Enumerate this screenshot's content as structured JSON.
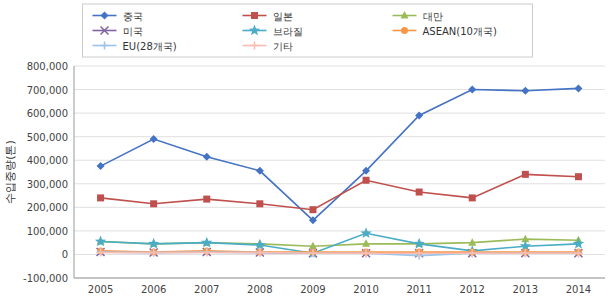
{
  "chart_data": {
    "type": "line",
    "y_label": "수입중량(톤)",
    "categories": [
      "2005",
      "2006",
      "2007",
      "2008",
      "2009",
      "2010",
      "2011",
      "2012",
      "2013",
      "2014"
    ],
    "series": [
      {
        "name": "중국",
        "color": "#4472C4",
        "marker": "diamond",
        "values": [
          375000,
          490000,
          415000,
          355000,
          145000,
          355000,
          590000,
          700000,
          695000,
          705000
        ]
      },
      {
        "name": "일본",
        "color": "#C0504D",
        "marker": "square",
        "values": [
          240000,
          215000,
          235000,
          215000,
          190000,
          315000,
          265000,
          240000,
          340000,
          330000
        ]
      },
      {
        "name": "대만",
        "color": "#9BBB59",
        "marker": "triangle",
        "values": [
          55000,
          45000,
          50000,
          45000,
          35000,
          45000,
          45000,
          50000,
          65000,
          60000
        ]
      },
      {
        "name": "미국",
        "color": "#8064A2",
        "marker": "x",
        "values": [
          10000,
          8000,
          10000,
          8000,
          5000,
          5000,
          5000,
          5000,
          5000,
          5000
        ]
      },
      {
        "name": "브라질",
        "color": "#4BACC6",
        "marker": "star",
        "values": [
          55000,
          45000,
          50000,
          40000,
          5000,
          90000,
          45000,
          15000,
          35000,
          45000
        ]
      },
      {
        "name": "ASEAN(10개국)",
        "color": "#F79646",
        "marker": "circle",
        "values": [
          15000,
          10000,
          15000,
          10000,
          10000,
          10000,
          10000,
          10000,
          10000,
          10000
        ]
      },
      {
        "name": "EU(28개국)",
        "color": "#9DC3E6",
        "marker": "plus",
        "values": [
          10000,
          8000,
          10000,
          8000,
          5000,
          5000,
          -5000,
          5000,
          5000,
          5000
        ]
      },
      {
        "name": "기타",
        "color": "#FABCB3",
        "marker": "plus",
        "values": [
          8000,
          8000,
          8000,
          8000,
          5000,
          5000,
          5000,
          5000,
          5000,
          5000
        ]
      }
    ],
    "ylim": [
      -100000,
      800000
    ],
    "yticks": [
      {
        "value": -100000,
        "label": "-100,000"
      },
      0,
      {
        "value": 100000,
        "label": "100,000"
      },
      {
        "value": 200000,
        "label": "200,000"
      },
      {
        "value": 300000,
        "label": "300,000"
      },
      {
        "value": 400000,
        "label": "400,000"
      },
      {
        "value": 500000,
        "label": "500,000"
      },
      {
        "value": 600000,
        "label": "600,000"
      },
      {
        "value": 700000,
        "label": "700,000"
      },
      {
        "value": 800000,
        "label": "800,000"
      }
    ],
    "grid": true,
    "legend": "top"
  }
}
